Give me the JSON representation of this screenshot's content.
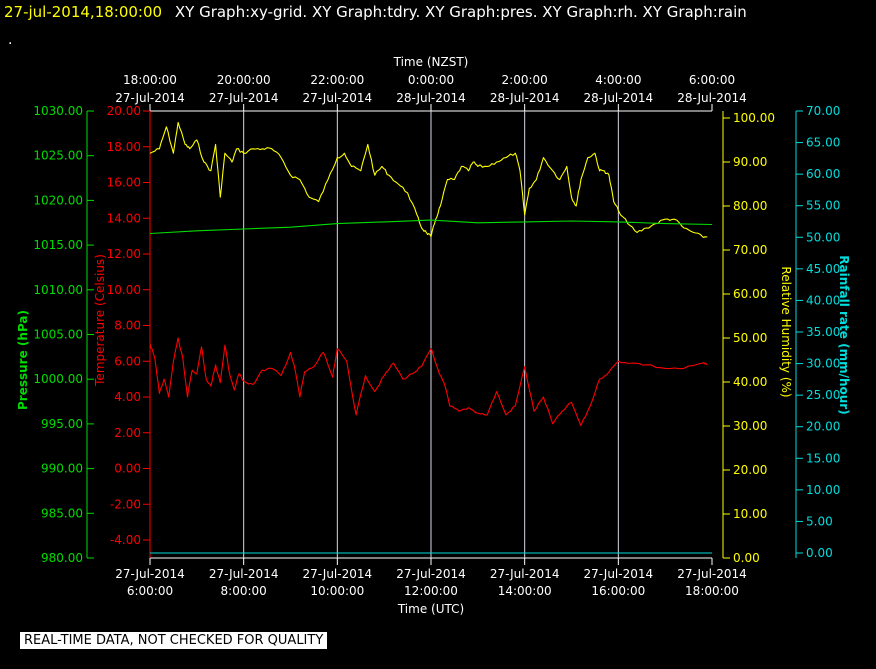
{
  "header": {
    "timestamp": "27-jul-2014,18:00:00",
    "graph_titles": "XY Graph:xy-grid.  XY Graph:tdry.  XY Graph:pres.  XY Graph:rh.  XY Graph:rain",
    "dot": "."
  },
  "footer": "REAL-TIME DATA, NOT CHECKED FOR QUALITY",
  "colors": {
    "background": "#000000",
    "pressure": "#00dd00",
    "temperature": "#ff0000",
    "humidity": "#ffff00",
    "rainfall": "#00dddd",
    "grid": "#ffffff"
  },
  "chart_data": {
    "type": "line",
    "top_axis": {
      "label": "Time (NZST)",
      "ticks": [
        [
          "18:00:00",
          "27-Jul-2014"
        ],
        [
          "20:00:00",
          "27-Jul-2014"
        ],
        [
          "22:00:00",
          "27-Jul-2014"
        ],
        [
          "0:00:00",
          "28-Jul-2014"
        ],
        [
          "2:00:00",
          "28-Jul-2014"
        ],
        [
          "4:00:00",
          "28-Jul-2014"
        ],
        [
          "6:00:00",
          "28-Jul-2014"
        ]
      ]
    },
    "bottom_axis": {
      "label": "Time (UTC)",
      "ticks": [
        [
          "27-Jul-2014",
          "6:00:00"
        ],
        [
          "27-Jul-2014",
          "8:00:00"
        ],
        [
          "27-Jul-2014",
          "10:00:00"
        ],
        [
          "27-Jul-2014",
          "12:00:00"
        ],
        [
          "27-Jul-2014",
          "14:00:00"
        ],
        [
          "27-Jul-2014",
          "16:00:00"
        ],
        [
          "27-Jul-2014",
          "18:00:00"
        ]
      ]
    },
    "x_range_hours_utc": [
      6,
      18
    ],
    "grid": true,
    "axes": {
      "pressure": {
        "label": "Pressure (hPa)",
        "min": 980,
        "max": 1030,
        "ticks": [
          "980.00",
          "985.00",
          "990.00",
          "995.00",
          "1000.00",
          "1005.00",
          "1010.00",
          "1015.00",
          "1020.00",
          "1025.00",
          "1030.00"
        ]
      },
      "temperature": {
        "label": "Temperature (Celsius)",
        "min": -5,
        "max": 20,
        "ticks": [
          "-4.00",
          "-2.00",
          "0.00",
          "2.00",
          "4.00",
          "6.00",
          "8.00",
          "10.00",
          "12.00",
          "14.00",
          "16.00",
          "18.00",
          "20.00"
        ]
      },
      "humidity": {
        "label": "Relative Humidity (%)",
        "min": 0,
        "max": 100,
        "ticks": [
          "0.00",
          "10.00",
          "20.00",
          "30.00",
          "40.00",
          "50.00",
          "60.00",
          "70.00",
          "80.00",
          "90.00",
          "100.00"
        ]
      },
      "rainfall": {
        "label": "Rainfall rate (mm/hour)",
        "min": 0,
        "max": 70,
        "ticks": [
          "0.00",
          "5.00",
          "10.00",
          "15.00",
          "20.00",
          "25.00",
          "30.00",
          "35.00",
          "40.00",
          "45.00",
          "50.00",
          "55.00",
          "60.00",
          "65.00",
          "70.00"
        ]
      }
    },
    "series": [
      {
        "key": "humidity",
        "x": [
          6.0,
          6.2,
          6.35,
          6.5,
          6.6,
          6.75,
          6.85,
          7.0,
          7.15,
          7.3,
          7.4,
          7.5,
          7.6,
          7.75,
          7.85,
          8.0,
          8.2,
          8.4,
          8.6,
          8.8,
          9.0,
          9.2,
          9.4,
          9.6,
          9.8,
          10.0,
          10.15,
          10.3,
          10.5,
          10.65,
          10.8,
          10.95,
          11.1,
          11.3,
          11.5,
          11.7,
          11.8,
          11.9,
          12.0,
          12.1,
          12.2,
          12.35,
          12.5,
          12.65,
          12.8,
          12.9,
          13.0,
          13.2,
          13.4,
          13.6,
          13.8,
          13.9,
          14.0,
          14.1,
          14.25,
          14.4,
          14.6,
          14.75,
          14.9,
          15.0,
          15.1,
          15.2,
          15.35,
          15.5,
          15.6,
          15.7,
          15.8,
          15.9,
          16.0,
          16.2,
          16.4,
          16.6,
          16.8,
          17.0,
          17.2,
          17.4,
          17.6,
          17.8,
          17.9
        ],
        "values": [
          92,
          93,
          98,
          92,
          99,
          94,
          93,
          95,
          90,
          88,
          94,
          82,
          92,
          90,
          93,
          92,
          93,
          93,
          93,
          91,
          87,
          86,
          82,
          81,
          86,
          91,
          92,
          89,
          88,
          94,
          87,
          89,
          87,
          85,
          83,
          78,
          75,
          74,
          73,
          77,
          80,
          86,
          86,
          89,
          88,
          90,
          89,
          89,
          90,
          91,
          92,
          88,
          78,
          84,
          86,
          91,
          88,
          86,
          89,
          82,
          80,
          86,
          91,
          92,
          88,
          88,
          87,
          81,
          79,
          76,
          74,
          75,
          76,
          77,
          77,
          75,
          74,
          73,
          73
        ]
      },
      {
        "key": "pressure",
        "x": [
          6,
          7,
          8,
          9,
          10,
          11,
          12,
          13,
          14,
          15,
          16,
          17,
          18
        ],
        "values": [
          1016.3,
          1016.6,
          1016.8,
          1017.0,
          1017.4,
          1017.6,
          1017.8,
          1017.5,
          1017.6,
          1017.7,
          1017.6,
          1017.4,
          1017.3
        ]
      },
      {
        "key": "temperature",
        "x": [
          6.0,
          6.1,
          6.2,
          6.3,
          6.4,
          6.5,
          6.6,
          6.7,
          6.8,
          6.9,
          7.0,
          7.1,
          7.2,
          7.3,
          7.4,
          7.5,
          7.6,
          7.7,
          7.8,
          7.9,
          8.0,
          8.2,
          8.4,
          8.6,
          8.8,
          9.0,
          9.1,
          9.2,
          9.3,
          9.5,
          9.7,
          9.9,
          10.0,
          10.2,
          10.4,
          10.6,
          10.8,
          11.0,
          11.2,
          11.4,
          11.6,
          11.8,
          12.0,
          12.1,
          12.2,
          12.3,
          12.4,
          12.6,
          12.8,
          13.0,
          13.2,
          13.4,
          13.6,
          13.8,
          14.0,
          14.2,
          14.4,
          14.6,
          14.8,
          15.0,
          15.2,
          15.4,
          15.6,
          15.8,
          16.0,
          16.3,
          16.6,
          17.0,
          17.4,
          17.8,
          17.9
        ],
        "values": [
          7.0,
          6.2,
          4.2,
          5.0,
          4.0,
          6.0,
          7.3,
          6.2,
          4.0,
          5.5,
          5.3,
          6.8,
          5.0,
          4.6,
          5.8,
          4.8,
          6.9,
          5.3,
          4.4,
          5.3,
          4.9,
          4.7,
          5.5,
          5.6,
          5.2,
          6.5,
          5.5,
          4.0,
          5.4,
          5.7,
          6.5,
          5.1,
          6.7,
          6.0,
          3.0,
          5.2,
          4.3,
          5.2,
          5.9,
          5.0,
          5.3,
          5.7,
          6.7,
          5.9,
          5.2,
          4.6,
          3.5,
          3.2,
          3.4,
          3.1,
          3.0,
          4.3,
          3.0,
          3.5,
          5.7,
          3.2,
          4.0,
          2.5,
          3.2,
          3.7,
          2.4,
          3.5,
          5.0,
          5.4,
          6.0,
          5.9,
          5.8,
          5.6,
          5.6,
          5.9,
          5.8
        ]
      },
      {
        "key": "rainfall",
        "x": [
          6,
          18
        ],
        "values": [
          0,
          0
        ]
      }
    ]
  }
}
